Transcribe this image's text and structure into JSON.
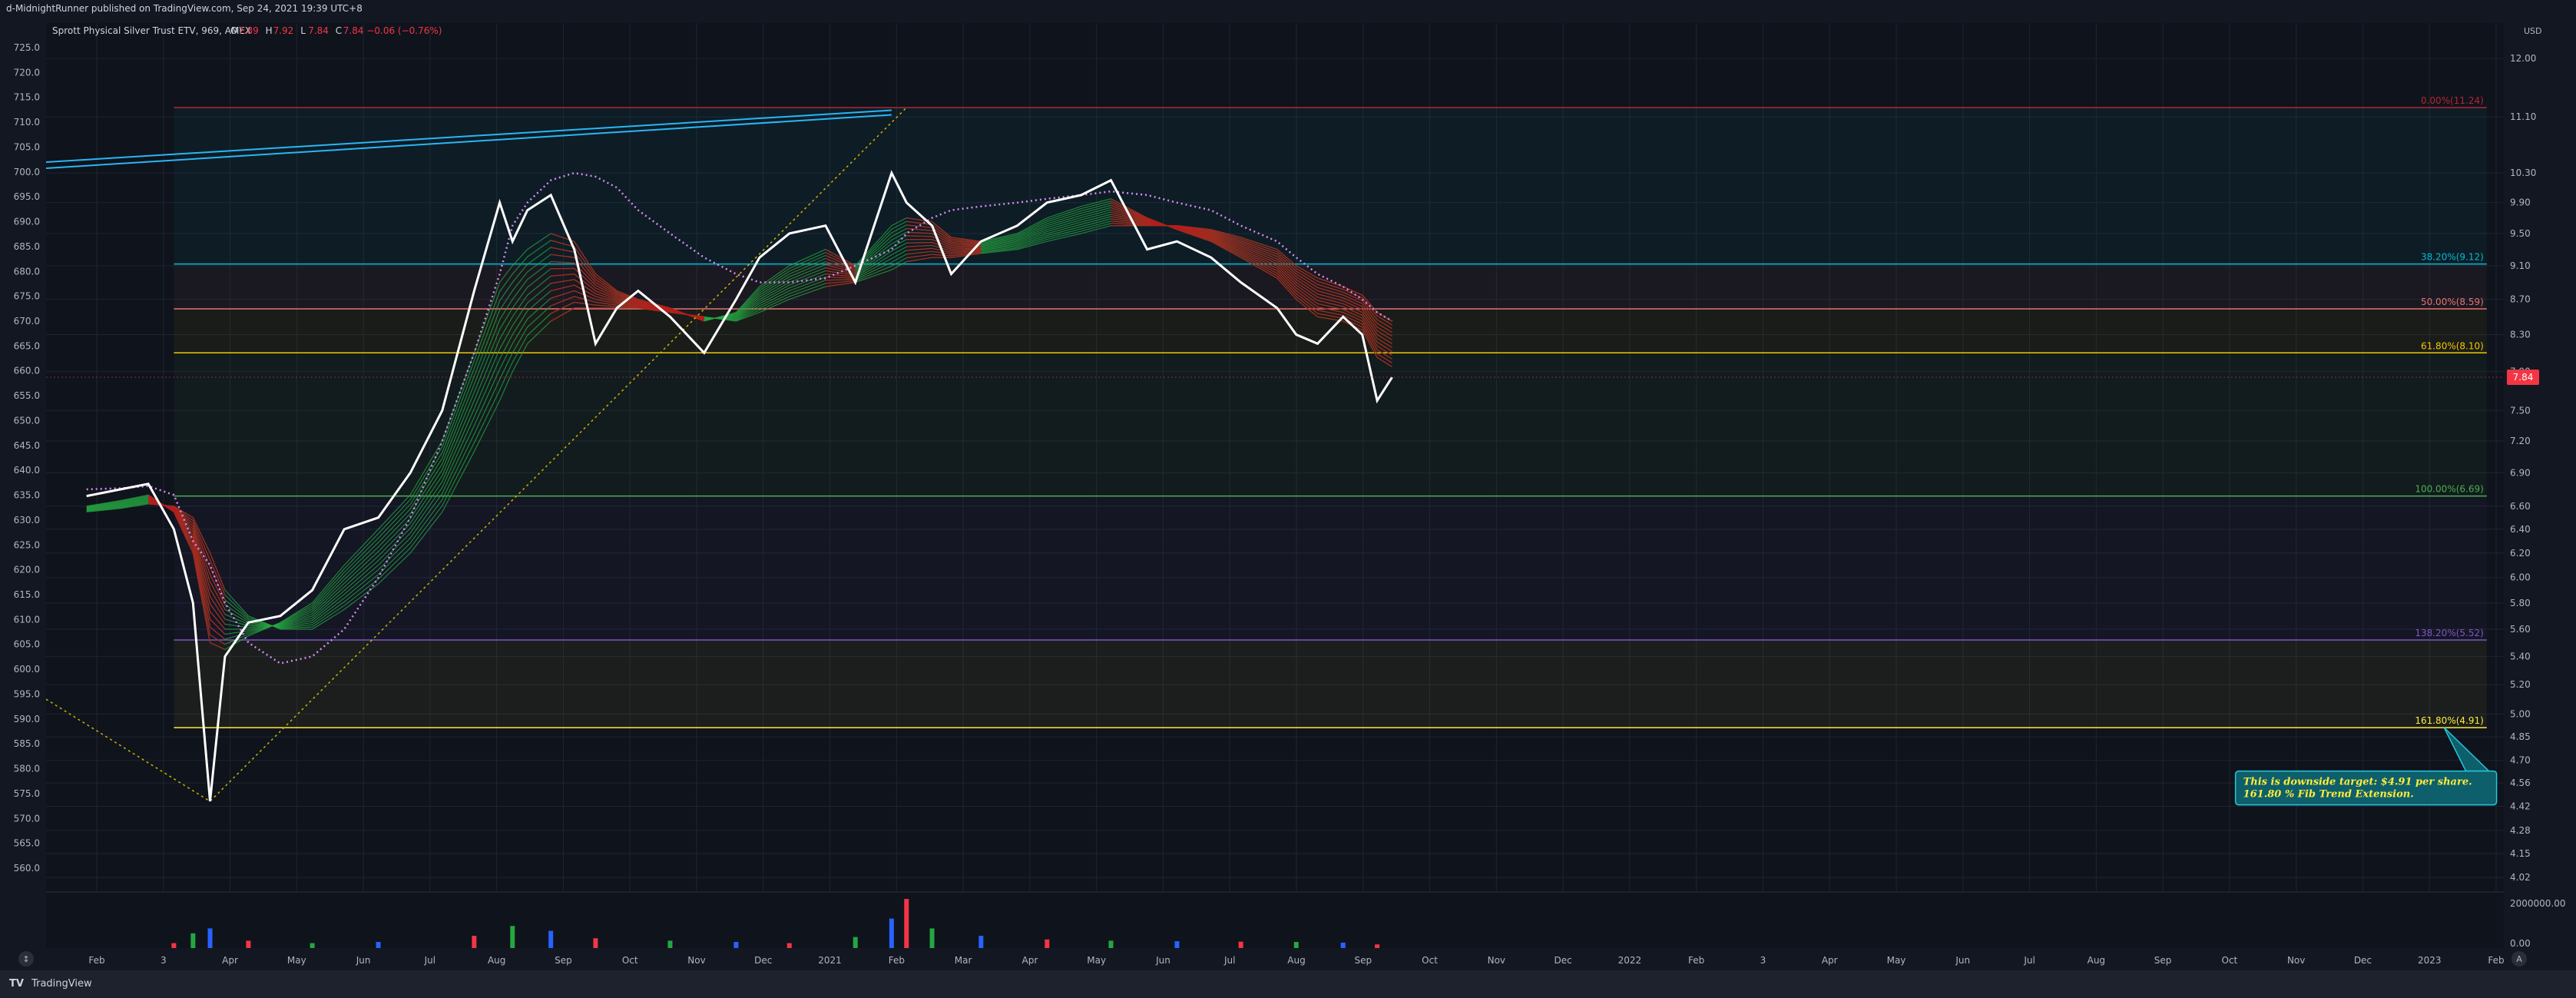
{
  "header": {
    "publish_line": "d-MidnightRunner published on TradingView.com, Sep 24, 2021 19:39 UTC+8"
  },
  "footer": {
    "logo_glyph": "TV",
    "brand": "TradingView"
  },
  "chart_data": {
    "type": "line",
    "instrument": {
      "title": "Sprott Physical Silver Trust ETV, 969, AMEX",
      "ohlc": [
        {
          "label": "O",
          "value": "7.89"
        },
        {
          "label": "H",
          "value": "7.92"
        },
        {
          "label": "L",
          "value": "7.84"
        },
        {
          "label": "C",
          "value": "7.84 −0.06 (−0.76%)"
        }
      ]
    },
    "left_axis": {
      "ticks": [
        560,
        565,
        570,
        575,
        580,
        585,
        590,
        595,
        600,
        605,
        610,
        615,
        620,
        625,
        630,
        635,
        640,
        645,
        650,
        655,
        660,
        665,
        670,
        675,
        680,
        685,
        690,
        695,
        700,
        705,
        710,
        715,
        720,
        725
      ],
      "decimals": 1
    },
    "right_axis": {
      "currency": "USD",
      "ticks": [
        "12.00",
        "11.10",
        "10.30",
        "9.90",
        "9.50",
        "9.10",
        "8.70",
        "8.30",
        "7.90",
        "7.50",
        "7.20",
        "6.90",
        "6.60",
        "6.40",
        "6.20",
        "6.00",
        "5.80",
        "5.60",
        "5.40",
        "5.20",
        "5.00",
        "4.85",
        "4.70",
        "4.56",
        "4.42",
        "4.28",
        "4.15",
        "4.02"
      ],
      "last_price": "7.84"
    },
    "volume_axis": {
      "ticks": [
        "2000000.00",
        "0.00"
      ]
    },
    "x_axis": {
      "labels": [
        "Feb",
        "3",
        "Apr",
        "May",
        "Jun",
        "Jul",
        "Aug",
        "Sep",
        "Oct",
        "Nov",
        "Dec",
        "2021",
        "Feb",
        "Mar",
        "Apr",
        "May",
        "Jun",
        "Jul",
        "Aug",
        "Sep",
        "Oct",
        "Nov",
        "Dec",
        "2022",
        "Feb",
        "3",
        "Apr",
        "May",
        "Jun",
        "Jul",
        "Aug",
        "Sep",
        "Oct",
        "Nov",
        "Dec",
        "2023",
        "Feb"
      ]
    },
    "price_series": {
      "name": "",
      "x": [
        "2020-01-20",
        "2020-02-05",
        "2020-02-18",
        "2020-03-01",
        "2020-03-10",
        "2020-03-18",
        "2020-03-25",
        "2020-04-05",
        "2020-04-20",
        "2020-05-05",
        "2020-05-20",
        "2020-06-05",
        "2020-06-20",
        "2020-07-05",
        "2020-07-20",
        "2020-08-01",
        "2020-08-07",
        "2020-08-14",
        "2020-08-25",
        "2020-09-05",
        "2020-09-15",
        "2020-09-25",
        "2020-10-05",
        "2020-10-20",
        "2020-11-05",
        "2020-11-20",
        "2020-12-01",
        "2020-12-15",
        "2021-01-01",
        "2021-01-15",
        "2021-02-01",
        "2021-02-08",
        "2021-02-20",
        "2021-03-01",
        "2021-03-15",
        "2021-04-01",
        "2021-04-15",
        "2021-05-01",
        "2021-05-15",
        "2021-06-01",
        "2021-06-15",
        "2021-07-01",
        "2021-07-15",
        "2021-08-01",
        "2021-08-10",
        "2021-08-20",
        "2021-09-01",
        "2021-09-10",
        "2021-09-17",
        "2021-09-24"
      ],
      "y": [
        6.69,
        6.75,
        6.8,
        6.4,
        5.8,
        4.45,
        5.4,
        5.65,
        5.7,
        5.9,
        6.4,
        6.5,
        6.9,
        7.5,
        8.8,
        9.9,
        9.4,
        9.8,
        10.0,
        9.3,
        8.2,
        8.6,
        8.8,
        8.5,
        8.1,
        8.7,
        9.2,
        9.5,
        9.6,
        8.9,
        10.3,
        9.9,
        9.6,
        9.0,
        9.4,
        9.6,
        9.9,
        10.0,
        10.2,
        9.3,
        9.4,
        9.2,
        8.9,
        8.6,
        8.3,
        8.2,
        8.5,
        8.3,
        7.6,
        7.84
      ]
    },
    "ma_ribbon": {
      "fast": [
        6.6,
        6.65,
        6.7,
        6.55,
        6.2,
        5.5,
        5.45,
        5.55,
        5.65,
        5.8,
        6.1,
        6.4,
        6.7,
        7.2,
        8.1,
        8.9,
        9.1,
        9.3,
        9.5,
        9.4,
        9.0,
        8.8,
        8.7,
        8.6,
        8.45,
        8.55,
        8.85,
        9.1,
        9.3,
        9.1,
        9.6,
        9.7,
        9.65,
        9.45,
        9.4,
        9.5,
        9.7,
        9.85,
        9.95,
        9.7,
        9.55,
        9.4,
        9.2,
        8.95,
        8.7,
        8.5,
        8.45,
        8.35,
        8.05,
        7.95
      ],
      "slow": [
        6.55,
        6.58,
        6.62,
        6.6,
        6.5,
        6.2,
        5.9,
        5.7,
        5.6,
        5.6,
        5.75,
        5.95,
        6.2,
        6.55,
        7.1,
        7.6,
        7.9,
        8.2,
        8.45,
        8.6,
        8.6,
        8.6,
        8.6,
        8.55,
        8.5,
        8.45,
        8.55,
        8.7,
        8.85,
        8.9,
        9.05,
        9.15,
        9.2,
        9.2,
        9.25,
        9.3,
        9.4,
        9.5,
        9.6,
        9.6,
        9.6,
        9.55,
        9.45,
        9.3,
        9.1,
        8.95,
        8.85,
        8.75,
        8.55,
        8.45
      ],
      "trail": [
        6.75,
        6.76,
        6.78,
        6.7,
        6.3,
        6.1,
        5.8,
        5.5,
        5.35,
        5.4,
        5.6,
        6.0,
        6.5,
        7.2,
        8.1,
        9.0,
        9.6,
        9.9,
        10.2,
        10.3,
        10.25,
        10.1,
        9.8,
        9.5,
        9.2,
        9.0,
        8.9,
        8.9,
        8.95,
        9.1,
        9.3,
        9.5,
        9.7,
        9.8,
        9.85,
        9.9,
        9.95,
        10.0,
        10.05,
        10.0,
        9.9,
        9.8,
        9.6,
        9.4,
        9.2,
        9.0,
        8.85,
        8.7,
        8.55,
        8.45
      ]
    },
    "volume": {
      "x": [
        "2020-03-01",
        "2020-03-10",
        "2020-03-18",
        "2020-04-05",
        "2020-05-05",
        "2020-06-05",
        "2020-07-20",
        "2020-08-07",
        "2020-08-25",
        "2020-09-15",
        "2020-10-20",
        "2020-11-20",
        "2020-12-15",
        "2021-01-15",
        "2021-02-01",
        "2021-02-08",
        "2021-02-20",
        "2021-03-15",
        "2021-04-15",
        "2021-05-15",
        "2021-06-15",
        "2021-07-15",
        "2021-08-10",
        "2021-09-01",
        "2021-09-17"
      ],
      "values": [
        200000,
        600000,
        800000,
        300000,
        200000,
        250000,
        500000,
        900000,
        700000,
        400000,
        300000,
        250000,
        200000,
        450000,
        1200000,
        2400000,
        800000,
        500000,
        350000,
        300000,
        280000,
        260000,
        250000,
        220000,
        150000
      ]
    },
    "fib_levels": [
      {
        "label": "0.00%(11.24)",
        "price": 11.24,
        "color": "#b22833"
      },
      {
        "label": "38.20%(9.12)",
        "price": 9.12,
        "color": "#00bcd4"
      },
      {
        "label": "50.00%(8.59)",
        "price": 8.59,
        "color": "#e57373"
      },
      {
        "label": "61.80%(8.10)",
        "price": 8.1,
        "color": "#f0c800"
      },
      {
        "label": "100.00%(6.69)",
        "price": 6.69,
        "color": "#4caf50"
      },
      {
        "label": "138.20%(5.52)",
        "price": 5.52,
        "color": "#7e57c2"
      },
      {
        "label": "161.80%(4.91)",
        "price": 4.91,
        "color": "#ffeb3b"
      }
    ],
    "fib_start_date": "2020-03-01",
    "fib_end_date": "2023-02-20",
    "trend_points": [
      {
        "date": "2020-01-01",
        "price": 5.1
      },
      {
        "date": "2020-03-18",
        "price": 4.45
      },
      {
        "date": "2021-02-08",
        "price": 11.24
      }
    ],
    "channel_line": {
      "start": {
        "date": "2020-01-01",
        "price": 10.45
      },
      "end": {
        "date": "2021-02-01",
        "price": 11.2
      }
    },
    "annotation": {
      "text": [
        "This is downside target: $4.91 per share.",
        "161.80 % Fib Trend Extension."
      ],
      "anchor_date": "2022-10-25",
      "anchor_price": 4.53,
      "pointer_date": "2023-01-31",
      "pointer_price": 4.91,
      "bg": "#0d5f6b",
      "border": "#26c6da",
      "text_color": "#ffeb3b"
    },
    "colors": {
      "background": "#131722",
      "price_line": "#ffffff",
      "ribbon_up": "#26a641",
      "ribbon_down": "#b71c1c",
      "trail": "#d48cf0",
      "channel": "#29b6f6",
      "trend": "#c8b400",
      "last_price_tag": "#f23645",
      "axis_text": "#b2b5be",
      "grid": "#1f2430"
    }
  }
}
